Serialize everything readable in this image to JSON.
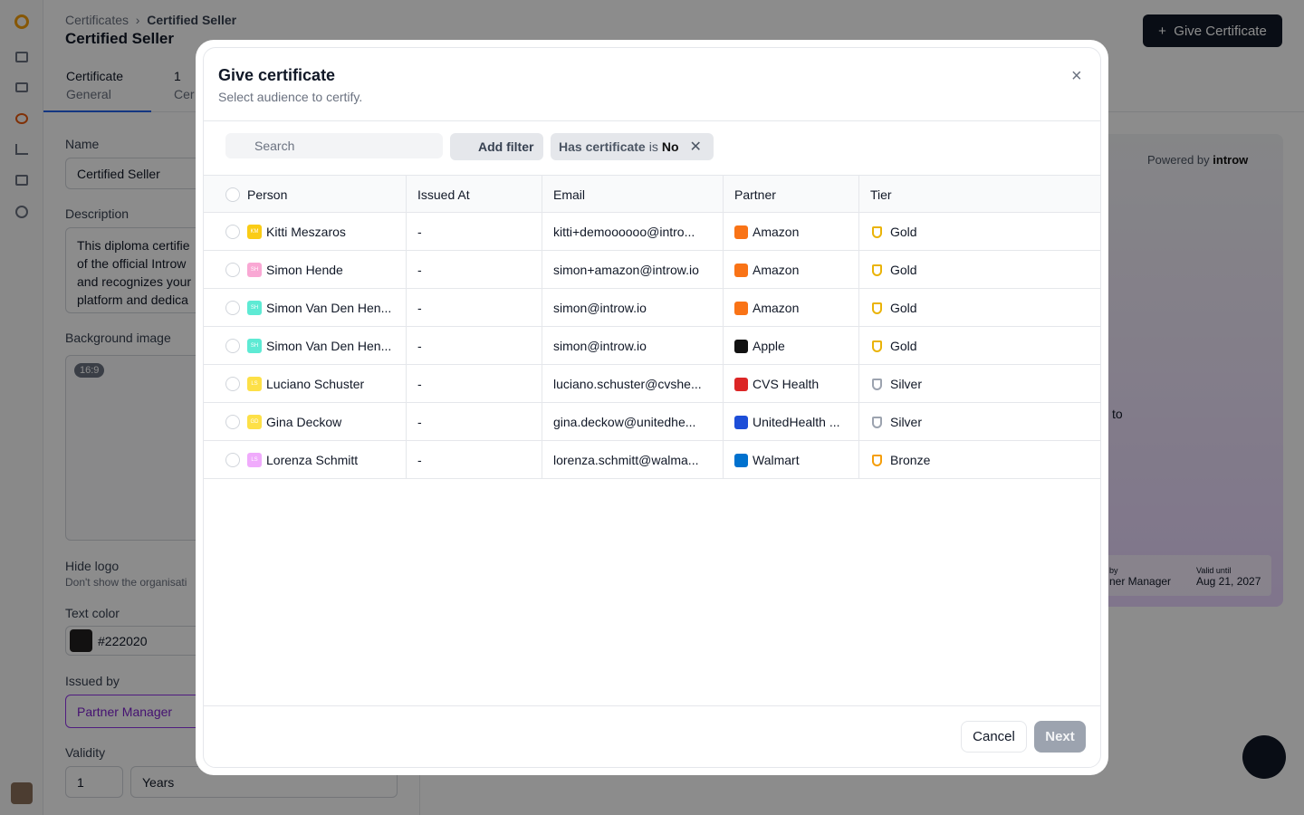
{
  "background": {
    "breadcrumb": [
      "Certificates",
      "Certified Seller"
    ],
    "page_title": "Certified Seller",
    "give_button": "Give Certificate",
    "tabs": [
      {
        "title": "Certificate",
        "sub": "General"
      },
      {
        "title": "1",
        "sub": "Cer"
      }
    ],
    "form": {
      "name_label": "Name",
      "name_value": "Certified Seller",
      "description_label": "Description",
      "description_lines": [
        "This diploma certifie",
        "of the official Introw",
        "and recognizes your",
        "platform and dedica"
      ],
      "background_label": "Background image",
      "ratio": "16:9",
      "hide_logo": "Hide logo",
      "hide_logo_hint": "Don't show the organisati",
      "text_color_label": "Text color",
      "text_color": "#222020",
      "issued_by_label": "Issued by",
      "issued_by": "Partner Manager",
      "validity_label": "Validity",
      "validity_value": "1",
      "validity_unit": "Years"
    },
    "preview": {
      "powered_by": "Powered by",
      "brand": "introw",
      "fragment": "to",
      "by": "by",
      "issuer": "ner Manager",
      "valid_until": "Valid until",
      "date": "Aug 21, 2027"
    }
  },
  "modal": {
    "title": "Give certificate",
    "subtitle": "Select audience to certify.",
    "search": "Search",
    "add_filter": "Add filter",
    "chip": {
      "field": "Has certificate",
      "op": "is",
      "value": "No"
    },
    "columns": [
      "Person",
      "Issued At",
      "Email",
      "Partner",
      "Tier"
    ],
    "rows": [
      {
        "initials": "KM",
        "avatar": "#facc15",
        "name": "Kitti Meszaros",
        "issued": "-",
        "email": "kitti+demoooooo@intro...",
        "partner": "Amazon",
        "partner_color": "#f97316",
        "tier": "Gold",
        "tier_color": "#eab308"
      },
      {
        "initials": "SH",
        "avatar": "#f9a8d4",
        "name": "Simon Hende",
        "issued": "-",
        "email": "simon+amazon@introw.io",
        "partner": "Amazon",
        "partner_color": "#f97316",
        "tier": "Gold",
        "tier_color": "#eab308"
      },
      {
        "initials": "SH",
        "avatar": "#5eead4",
        "name": "Simon Van Den Hen...",
        "issued": "-",
        "email": "simon@introw.io",
        "partner": "Amazon",
        "partner_color": "#f97316",
        "tier": "Gold",
        "tier_color": "#eab308"
      },
      {
        "initials": "SH",
        "avatar": "#5eead4",
        "name": "Simon Van Den Hen...",
        "issued": "-",
        "email": "simon@introw.io",
        "partner": "Apple",
        "partner_color": "#111111",
        "tier": "Gold",
        "tier_color": "#eab308"
      },
      {
        "initials": "LS",
        "avatar": "#fde047",
        "name": "Luciano Schuster",
        "issued": "-",
        "email": "luciano.schuster@cvshe...",
        "partner": "CVS Health",
        "partner_color": "#dc2626",
        "tier": "Silver",
        "tier_color": "#9ca3af"
      },
      {
        "initials": "GD",
        "avatar": "#fde047",
        "name": "Gina Deckow",
        "issued": "-",
        "email": "gina.deckow@unitedhe...",
        "partner": "UnitedHealth ...",
        "partner_color": "#1d4ed8",
        "tier": "Silver",
        "tier_color": "#9ca3af"
      },
      {
        "initials": "LS",
        "avatar": "#f0abfc",
        "name": "Lorenza Schmitt",
        "issued": "-",
        "email": "lorenza.schmitt@walma...",
        "partner": "Walmart",
        "partner_color": "#0071ce",
        "tier": "Bronze",
        "tier_color": "#f59e0b"
      }
    ],
    "cancel": "Cancel",
    "next": "Next"
  }
}
